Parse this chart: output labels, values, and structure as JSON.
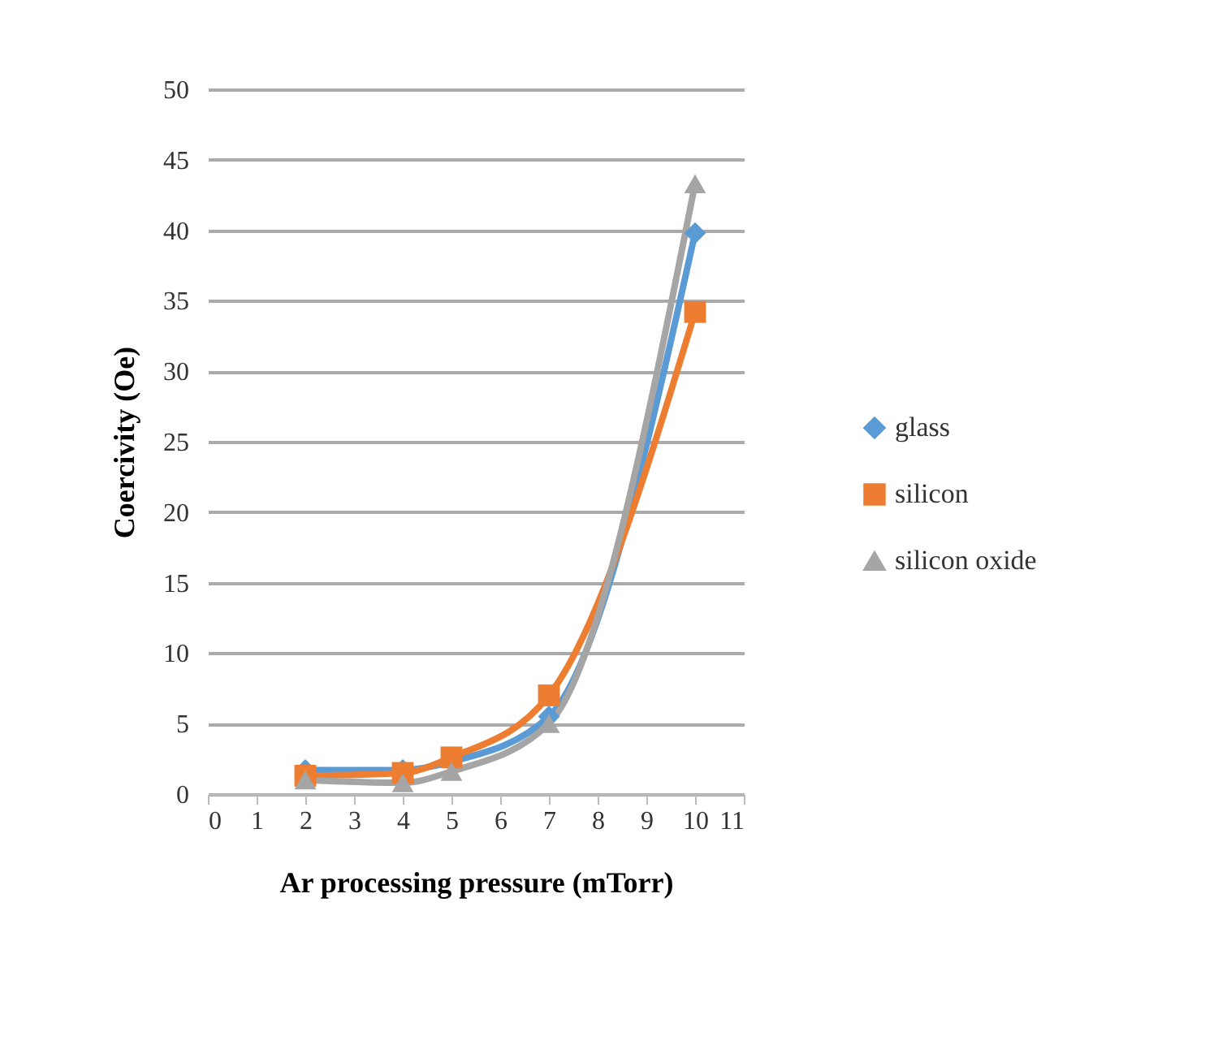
{
  "chart_data": {
    "type": "line",
    "xlabel": "Ar processing pressure (mTorr)",
    "ylabel": "Coercivity (Oe)",
    "x": [
      2,
      4,
      5,
      7,
      10
    ],
    "series": [
      {
        "name": "glass",
        "color": "#5b9bd5",
        "marker": "diamond",
        "values": [
          1.7,
          1.7,
          2.3,
          5.5,
          39.8
        ]
      },
      {
        "name": "silicon",
        "color": "#ed7d31",
        "marker": "square",
        "values": [
          1.3,
          1.5,
          2.6,
          7,
          34.2
        ]
      },
      {
        "name": "silicon oxide",
        "color": "#a5a5a5",
        "marker": "triangle",
        "values": [
          1.0,
          0.8,
          1.6,
          5,
          43.3
        ]
      }
    ],
    "xlim": [
      0,
      11
    ],
    "xticks": [
      0,
      1,
      2,
      3,
      4,
      5,
      6,
      7,
      8,
      9,
      10,
      11
    ],
    "ylim": [
      0,
      50
    ],
    "yticks": [
      0,
      5,
      10,
      15,
      20,
      25,
      30,
      35,
      40,
      45,
      50
    ],
    "grid": "y",
    "legend": "right"
  }
}
